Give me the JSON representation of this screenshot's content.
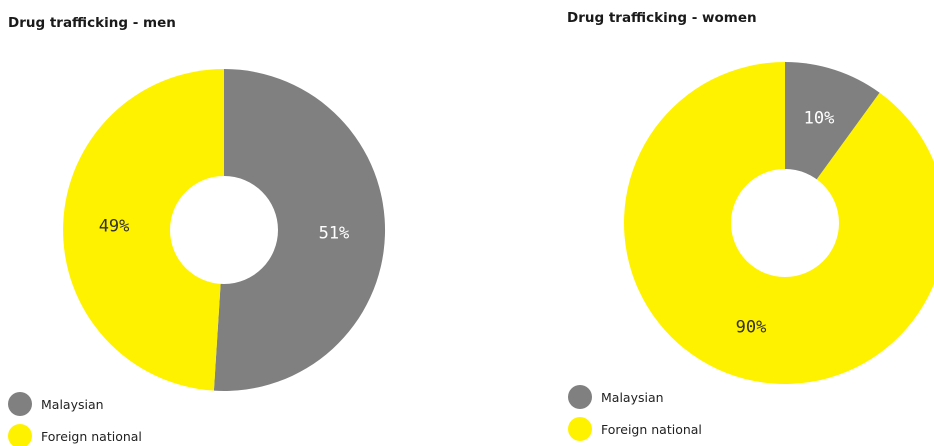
{
  "chart_data": [
    {
      "type": "pie",
      "title": "Drug trafficking - men",
      "categories": [
        "Malaysian",
        "Foreign national"
      ],
      "values": [
        51,
        49
      ],
      "value_labels": [
        "51%",
        "49%"
      ],
      "colors": [
        "#808080",
        "#fff200"
      ],
      "label_colors": [
        "#ffffff",
        "#333333"
      ],
      "donut": true,
      "start_angle_deg": 0,
      "direction": "clockwise",
      "legend": {
        "position": "bottom-left",
        "entries": [
          "Malaysian",
          "Foreign national"
        ]
      }
    },
    {
      "type": "pie",
      "title": "Drug trafficking - women",
      "categories": [
        "Malaysian",
        "Foreign national"
      ],
      "values": [
        10,
        90
      ],
      "value_labels": [
        "10%",
        "90%"
      ],
      "colors": [
        "#808080",
        "#fff200"
      ],
      "label_colors": [
        "#ffffff",
        "#333333"
      ],
      "donut": true,
      "start_angle_deg": 0,
      "direction": "clockwise",
      "legend": {
        "position": "bottom-left",
        "entries": [
          "Malaysian",
          "Foreign national"
        ]
      }
    }
  ]
}
